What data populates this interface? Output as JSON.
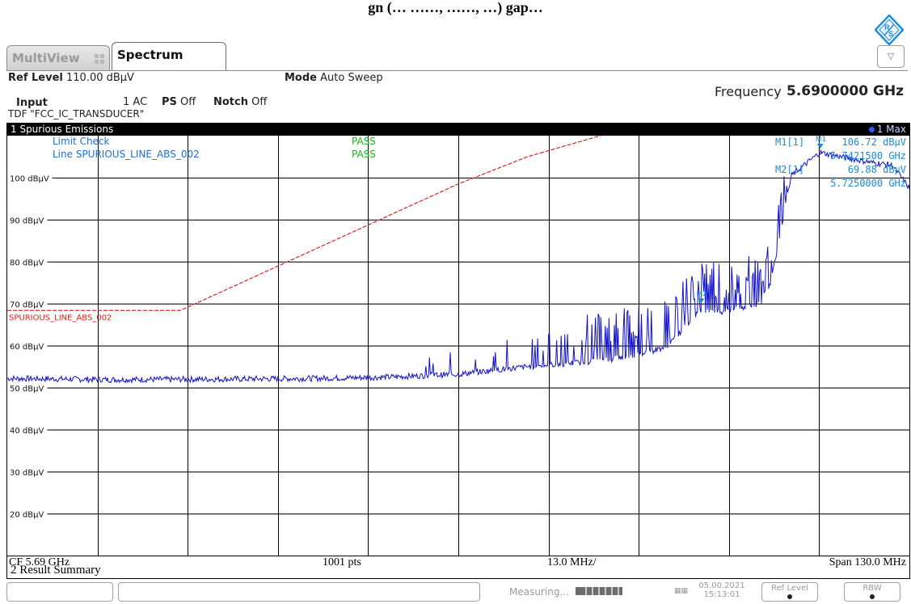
{
  "page_title": "gn (… ……, ……, …) gap…",
  "tabs": {
    "multiview": "MultiView",
    "spectrum": "Spectrum"
  },
  "settings": {
    "ref_level_label": "Ref Level",
    "ref_level_value": "110.00 dBµV",
    "mode_label": "Mode",
    "mode_value": "Auto Sweep",
    "input_label": "Input",
    "input_coupling": "1 AC",
    "ps_label": "PS",
    "ps_value": "Off",
    "notch_label": "Notch",
    "notch_value": "Off",
    "tdf": "TDF \"FCC_IC_TRANSDUCER\"",
    "frequency_label": "Frequency",
    "frequency_value": "5.6900000 GHz"
  },
  "diagram": {
    "title": "1 Spurious Emissions",
    "trace_badge": "1 Max",
    "limit_check_label": "Limit Check",
    "limit_check_result": "PASS",
    "line_label": "Line  SPURIOUS_LINE_ABS_002",
    "line_result": "PASS",
    "limit_line_name": "SPURIOUS_LINE_ABS_002",
    "markers": [
      {
        "name": "M1[1]",
        "level": "106.72 dBµV",
        "freq": "5.7421500 GHz",
        "tag": "M1"
      },
      {
        "name": "M2[1]",
        "level": "69.88 dBµV",
        "freq": "5.7250000 GHz",
        "tag": "M2"
      }
    ],
    "footer": {
      "cf": "CF 5.69 GHz",
      "points": "1001 pts",
      "div": "13.0 MHz/",
      "span": "Span 130.0 MHz"
    }
  },
  "result_summary": "2 Result Summary",
  "status_bar": {
    "measuring": "Measuring...",
    "date": "05.00.2021",
    "time": "15:13:01",
    "ref_level": "Ref Level",
    "rbw": "RBW"
  },
  "colors": {
    "trace": "#1010d0",
    "limit_line": "#e02020",
    "pass": "#20b020",
    "marker_text": "#1a8ad8",
    "info_blue": "#2070d0"
  },
  "chart_data": {
    "type": "line",
    "x_unit": "GHz",
    "xlim": [
      5.625,
      5.755
    ],
    "ylim": [
      10,
      110
    ],
    "y_ticks": [
      {
        "value": 100,
        "label": "100 dBµV"
      },
      {
        "value": 90,
        "label": "90 dBµV"
      },
      {
        "value": 80,
        "label": "80 dBµV"
      },
      {
        "value": 70,
        "label": "70 dBµV"
      },
      {
        "value": 60,
        "label": "60 dBµV"
      },
      {
        "value": 50,
        "label": "50 dBµV"
      },
      {
        "value": 40,
        "label": "40 dBµV"
      },
      {
        "value": 30,
        "label": "30 dBµV"
      },
      {
        "value": 20,
        "label": "20 dBµV"
      }
    ],
    "grid": true,
    "limit_line": {
      "x": [
        5.625,
        5.65,
        5.69,
        5.7,
        5.7105
      ],
      "y": [
        68.4,
        68.4,
        98.5,
        105.0,
        110.0
      ]
    },
    "trace_envelope": {
      "x": [
        5.625,
        5.64,
        5.655,
        5.67,
        5.68,
        5.69,
        5.7,
        5.71,
        5.716,
        5.72,
        5.725,
        5.727,
        5.73,
        5.7335,
        5.735,
        5.738,
        5.7421,
        5.745,
        5.75,
        5.7525,
        5.755
      ],
      "y": [
        52.2,
        51.9,
        52.0,
        52.2,
        52.5,
        53.2,
        55.0,
        56.3,
        57.8,
        59.8,
        68.5,
        68.0,
        68.5,
        70.0,
        75.0,
        100.5,
        106.0,
        105.0,
        103.5,
        103.0,
        97.5
      ]
    },
    "markers": [
      {
        "name": "M1",
        "x": 5.74215,
        "y": 106.72
      },
      {
        "name": "M2",
        "x": 5.725,
        "y": 69.88
      }
    ]
  }
}
